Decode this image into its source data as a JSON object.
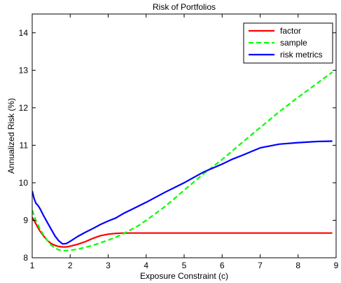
{
  "chart_data": {
    "type": "line",
    "title": "Risk of Portfolios",
    "xlabel": "Exposure Constraint (c)",
    "ylabel": "Annualized Risk (%)",
    "xlim": [
      1,
      9
    ],
    "ylim": [
      8,
      14.5
    ],
    "xticks": [
      1,
      2,
      3,
      4,
      5,
      6,
      7,
      8,
      9
    ],
    "yticks": [
      8,
      9,
      10,
      11,
      12,
      13,
      14
    ],
    "grid": false,
    "legend_position": "top-right",
    "series": [
      {
        "name": "factor",
        "color": "#ff0000",
        "dash": "solid",
        "x": [
          1.0,
          1.1,
          1.2,
          1.3,
          1.4,
          1.5,
          1.6,
          1.7,
          1.8,
          1.9,
          2.0,
          2.2,
          2.4,
          2.6,
          2.8,
          3.0,
          3.2,
          3.4,
          3.6,
          4.0,
          5.0,
          6.0,
          7.0,
          8.0,
          8.9
        ],
        "y": [
          9.08,
          8.9,
          8.72,
          8.58,
          8.46,
          8.38,
          8.33,
          8.3,
          8.29,
          8.29,
          8.31,
          8.36,
          8.43,
          8.52,
          8.59,
          8.63,
          8.65,
          8.66,
          8.66,
          8.66,
          8.66,
          8.66,
          8.66,
          8.66,
          8.66
        ]
      },
      {
        "name": "sample",
        "color": "#00ff00",
        "dash": "dashed",
        "x": [
          1.0,
          1.1,
          1.2,
          1.3,
          1.4,
          1.5,
          1.6,
          1.7,
          1.8,
          1.9,
          2.0,
          2.2,
          2.4,
          2.6,
          2.8,
          3.0,
          3.2,
          3.4,
          3.6,
          3.8,
          4.0,
          4.5,
          5.0,
          5.5,
          6.0,
          6.5,
          7.0,
          7.5,
          8.0,
          8.5,
          8.9
        ],
        "y": [
          9.27,
          8.98,
          8.78,
          8.6,
          8.46,
          8.34,
          8.26,
          8.21,
          8.19,
          8.19,
          8.2,
          8.23,
          8.28,
          8.33,
          8.4,
          8.47,
          8.55,
          8.64,
          8.75,
          8.86,
          9.0,
          9.37,
          9.8,
          10.23,
          10.62,
          11.05,
          11.47,
          11.89,
          12.28,
          12.65,
          12.95
        ]
      },
      {
        "name": "risk metrics",
        "color": "#0000ff",
        "dash": "solid",
        "x": [
          1.0,
          1.05,
          1.1,
          1.15,
          1.2,
          1.3,
          1.4,
          1.5,
          1.6,
          1.7,
          1.8,
          1.9,
          2.0,
          2.2,
          2.4,
          2.6,
          2.8,
          3.0,
          3.2,
          3.4,
          3.6,
          3.8,
          4.0,
          4.5,
          5.0,
          5.5,
          6.0,
          6.25,
          6.5,
          7.0,
          7.5,
          8.0,
          8.5,
          8.9
        ],
        "y": [
          9.78,
          9.58,
          9.45,
          9.4,
          9.32,
          9.12,
          8.94,
          8.76,
          8.58,
          8.45,
          8.37,
          8.38,
          8.44,
          8.57,
          8.68,
          8.78,
          8.89,
          8.98,
          9.06,
          9.18,
          9.28,
          9.38,
          9.48,
          9.75,
          10.0,
          10.28,
          10.5,
          10.62,
          10.72,
          10.93,
          11.03,
          11.07,
          11.1,
          11.11
        ]
      }
    ]
  }
}
